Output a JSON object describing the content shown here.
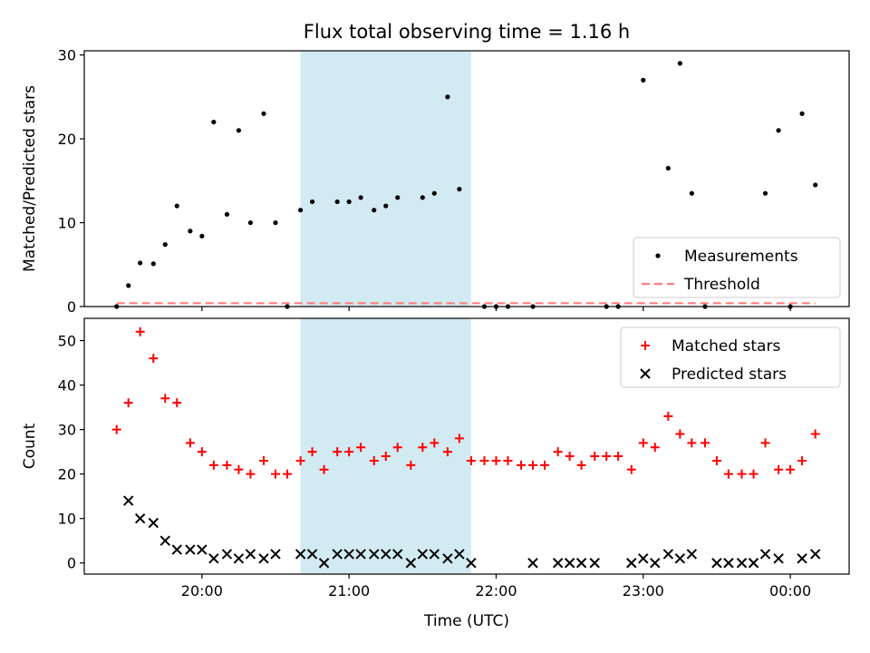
{
  "figure": {
    "title": "Flux total observing time = 1.16 h",
    "xlabel": "Time (UTC)"
  },
  "chart_data": [
    {
      "type": "scatter",
      "title": "Flux total observing time = 1.16 h",
      "ylabel": "Matched/Predicted stars",
      "xlabel": "",
      "x_unit": "hours (UTC, >24 = after midnight)",
      "xlim": [
        19.2,
        24.4
      ],
      "ylim": [
        0,
        30.5
      ],
      "yticks": [
        0,
        10,
        20,
        30
      ],
      "highlight_span": {
        "start": 20.67,
        "end": 21.83,
        "color": "#add8e6"
      },
      "legend_position": "lower-right",
      "series": [
        {
          "name": "Measurements",
          "marker": "dot",
          "color": "#000000",
          "points": [
            [
              19.42,
              0
            ],
            [
              19.5,
              2.5
            ],
            [
              19.58,
              5.2
            ],
            [
              19.67,
              5.1
            ],
            [
              19.75,
              7.4
            ],
            [
              19.83,
              12
            ],
            [
              19.92,
              9
            ],
            [
              20.0,
              8.4
            ],
            [
              20.08,
              22
            ],
            [
              20.17,
              11
            ],
            [
              20.25,
              21
            ],
            [
              20.33,
              10
            ],
            [
              20.42,
              23
            ],
            [
              20.5,
              10
            ],
            [
              20.58,
              0
            ],
            [
              20.67,
              11.5
            ],
            [
              20.75,
              12.5
            ],
            [
              20.92,
              12.5
            ],
            [
              21.0,
              12.5
            ],
            [
              21.08,
              13
            ],
            [
              21.17,
              11.5
            ],
            [
              21.25,
              12
            ],
            [
              21.33,
              13
            ],
            [
              21.5,
              13
            ],
            [
              21.58,
              13.5
            ],
            [
              21.67,
              25
            ],
            [
              21.75,
              14
            ],
            [
              21.92,
              0
            ],
            [
              22.0,
              0
            ],
            [
              22.08,
              0
            ],
            [
              22.25,
              0
            ],
            [
              22.75,
              0
            ],
            [
              22.83,
              0
            ],
            [
              23.0,
              27
            ],
            [
              23.17,
              16.5
            ],
            [
              23.25,
              29
            ],
            [
              23.33,
              13.5
            ],
            [
              23.42,
              0
            ],
            [
              23.83,
              13.5
            ],
            [
              23.92,
              21
            ],
            [
              24.0,
              0
            ],
            [
              24.08,
              23
            ],
            [
              24.17,
              14.5
            ]
          ]
        },
        {
          "name": "Threshold",
          "style": "dashed",
          "color": "#ff7f7f",
          "points": [
            [
              19.42,
              0.4
            ],
            [
              24.17,
              0.4
            ]
          ]
        }
      ]
    },
    {
      "type": "scatter",
      "ylabel": "Count",
      "xlabel": "Time (UTC)",
      "xlim": [
        19.2,
        24.4
      ],
      "ylim": [
        -2.5,
        55
      ],
      "yticks": [
        0,
        10,
        20,
        30,
        40,
        50
      ],
      "xticks": [
        {
          "value": 20,
          "label": "20:00"
        },
        {
          "value": 21,
          "label": "21:00"
        },
        {
          "value": 22,
          "label": "22:00"
        },
        {
          "value": 23,
          "label": "23:00"
        },
        {
          "value": 24,
          "label": "00:00"
        }
      ],
      "highlight_span": {
        "start": 20.67,
        "end": 21.83,
        "color": "#add8e6"
      },
      "legend_position": "upper-right",
      "series": [
        {
          "name": "Matched stars",
          "marker": "plus",
          "color": "#ff0000",
          "points": [
            [
              19.42,
              30
            ],
            [
              19.5,
              36
            ],
            [
              19.58,
              52
            ],
            [
              19.67,
              46
            ],
            [
              19.75,
              37
            ],
            [
              19.83,
              36
            ],
            [
              19.92,
              27
            ],
            [
              20.0,
              25
            ],
            [
              20.08,
              22
            ],
            [
              20.17,
              22
            ],
            [
              20.25,
              21
            ],
            [
              20.33,
              20
            ],
            [
              20.42,
              23
            ],
            [
              20.5,
              20
            ],
            [
              20.58,
              20
            ],
            [
              20.67,
              23
            ],
            [
              20.75,
              25
            ],
            [
              20.83,
              21
            ],
            [
              20.92,
              25
            ],
            [
              21.0,
              25
            ],
            [
              21.08,
              26
            ],
            [
              21.17,
              23
            ],
            [
              21.25,
              24
            ],
            [
              21.33,
              26
            ],
            [
              21.42,
              22
            ],
            [
              21.5,
              26
            ],
            [
              21.58,
              27
            ],
            [
              21.67,
              25
            ],
            [
              21.75,
              28
            ],
            [
              21.83,
              23
            ],
            [
              21.92,
              23
            ],
            [
              22.0,
              23
            ],
            [
              22.08,
              23
            ],
            [
              22.17,
              22
            ],
            [
              22.25,
              22
            ],
            [
              22.33,
              22
            ],
            [
              22.42,
              25
            ],
            [
              22.5,
              24
            ],
            [
              22.58,
              22
            ],
            [
              22.67,
              24
            ],
            [
              22.75,
              24
            ],
            [
              22.83,
              24
            ],
            [
              22.92,
              21
            ],
            [
              23.0,
              27
            ],
            [
              23.08,
              26
            ],
            [
              23.17,
              33
            ],
            [
              23.25,
              29
            ],
            [
              23.33,
              27
            ],
            [
              23.42,
              27
            ],
            [
              23.5,
              23
            ],
            [
              23.58,
              20
            ],
            [
              23.67,
              20
            ],
            [
              23.75,
              20
            ],
            [
              23.83,
              27
            ],
            [
              23.92,
              21
            ],
            [
              24.0,
              21
            ],
            [
              24.08,
              23
            ],
            [
              24.17,
              29
            ]
          ]
        },
        {
          "name": "Predicted stars",
          "marker": "x",
          "color": "#000000",
          "points": [
            [
              19.5,
              14
            ],
            [
              19.58,
              10
            ],
            [
              19.67,
              9
            ],
            [
              19.75,
              5
            ],
            [
              19.83,
              3
            ],
            [
              19.92,
              3
            ],
            [
              20.0,
              3
            ],
            [
              20.08,
              1
            ],
            [
              20.17,
              2
            ],
            [
              20.25,
              1
            ],
            [
              20.33,
              2
            ],
            [
              20.42,
              1
            ],
            [
              20.5,
              2
            ],
            [
              20.67,
              2
            ],
            [
              20.75,
              2
            ],
            [
              20.83,
              0
            ],
            [
              20.92,
              2
            ],
            [
              21.0,
              2
            ],
            [
              21.08,
              2
            ],
            [
              21.17,
              2
            ],
            [
              21.25,
              2
            ],
            [
              21.33,
              2
            ],
            [
              21.42,
              0
            ],
            [
              21.5,
              2
            ],
            [
              21.58,
              2
            ],
            [
              21.67,
              1
            ],
            [
              21.75,
              2
            ],
            [
              21.83,
              0
            ],
            [
              22.25,
              0
            ],
            [
              22.42,
              0
            ],
            [
              22.5,
              0
            ],
            [
              22.58,
              0
            ],
            [
              22.67,
              0
            ],
            [
              22.92,
              0
            ],
            [
              23.0,
              1
            ],
            [
              23.08,
              0
            ],
            [
              23.17,
              2
            ],
            [
              23.25,
              1
            ],
            [
              23.33,
              2
            ],
            [
              23.5,
              0
            ],
            [
              23.58,
              0
            ],
            [
              23.67,
              0
            ],
            [
              23.75,
              0
            ],
            [
              23.83,
              2
            ],
            [
              23.92,
              1
            ],
            [
              24.08,
              1
            ],
            [
              24.17,
              2
            ]
          ]
        }
      ]
    }
  ]
}
